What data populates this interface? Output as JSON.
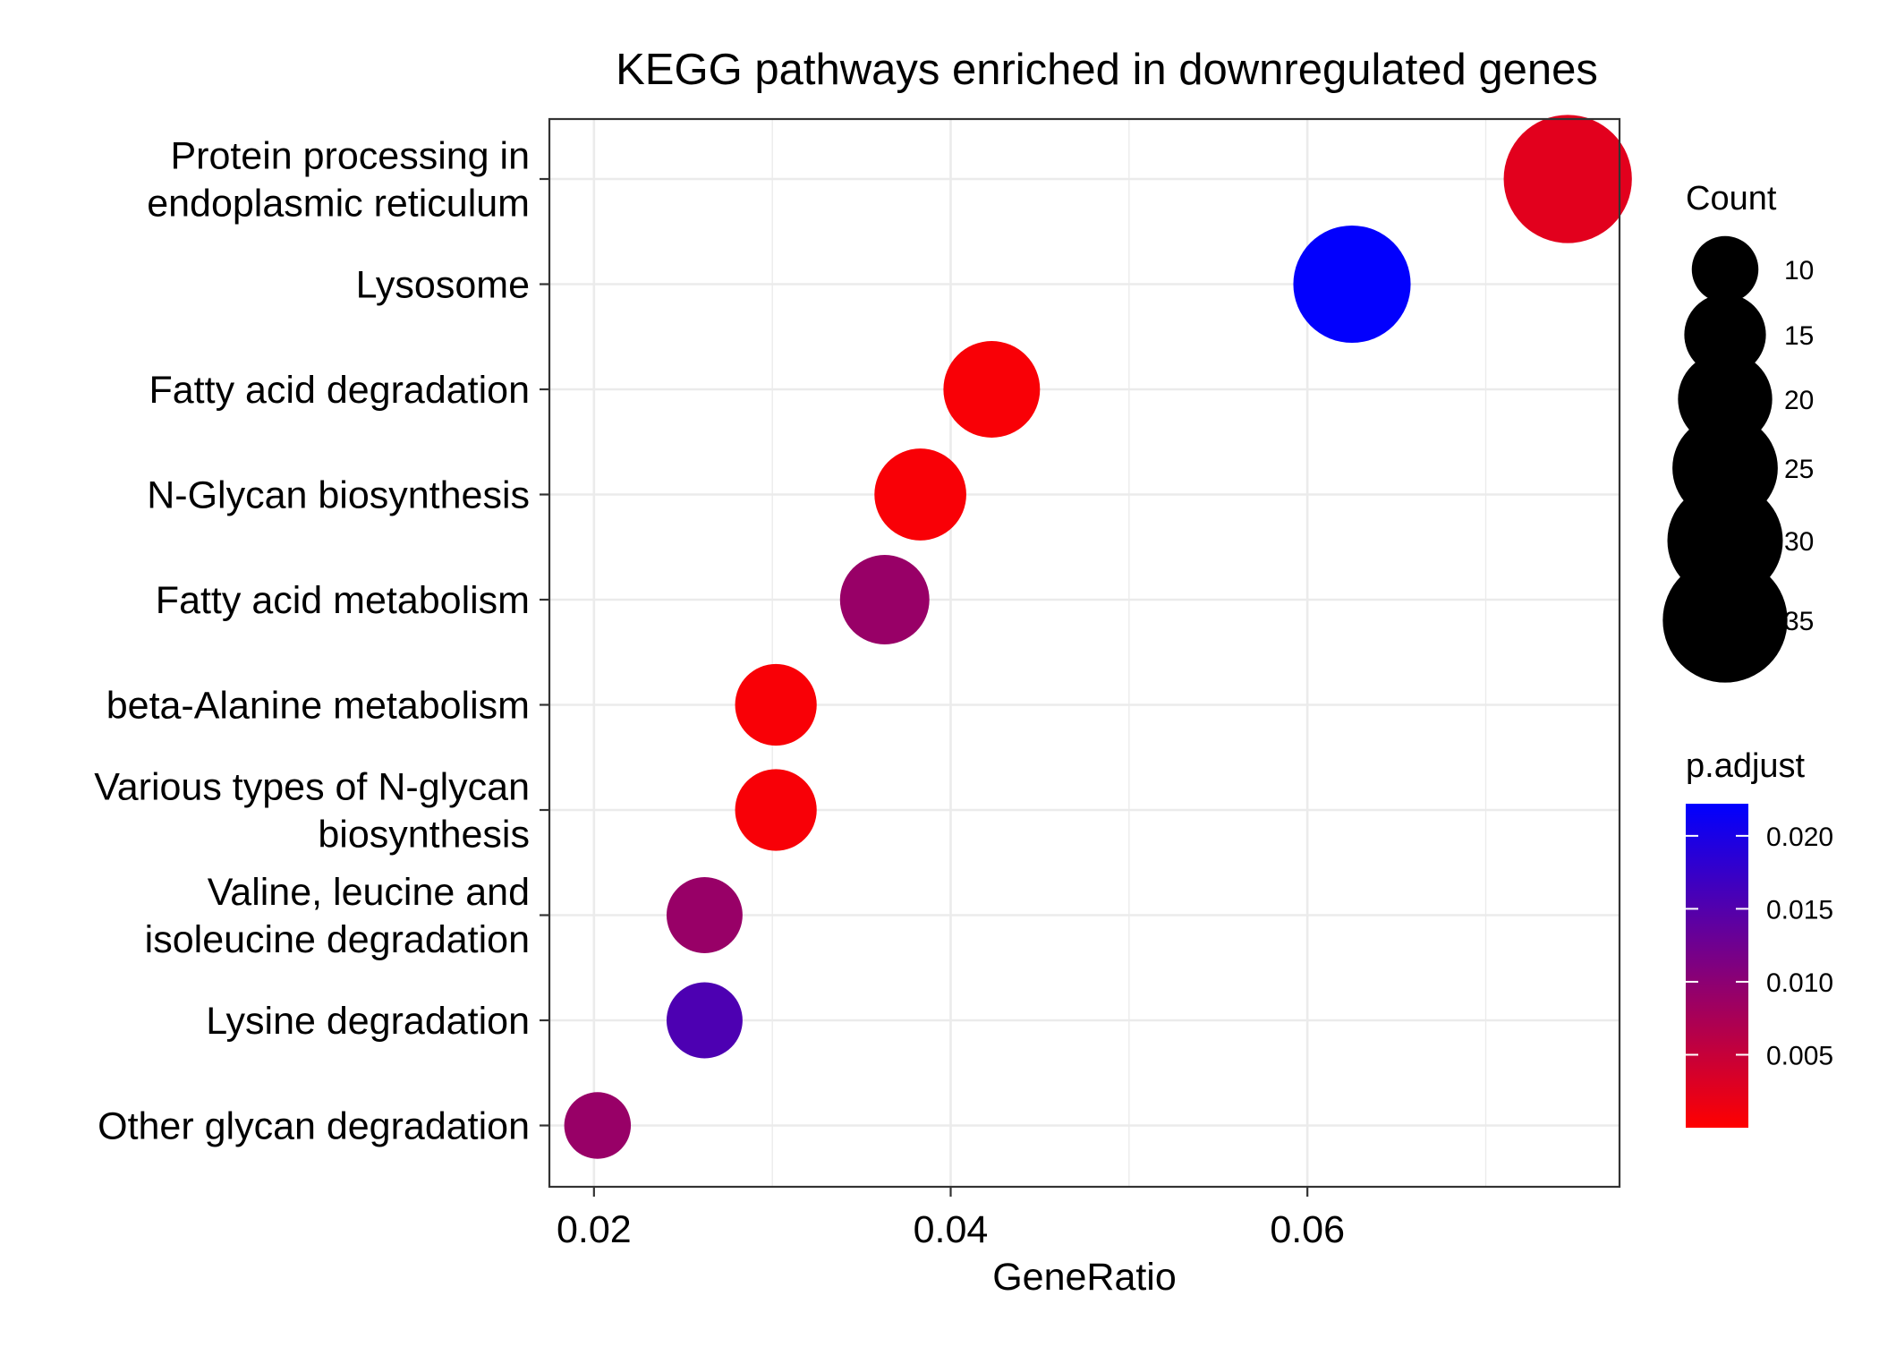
{
  "chart_data": {
    "type": "scatter",
    "title": "KEGG pathways enriched in downregulated genes",
    "xlabel": "GeneRatio",
    "ylabel": "",
    "xlim": [
      0.0175,
      0.0775
    ],
    "x_ticks": [
      "0.02",
      "0.04",
      "0.06"
    ],
    "x_tick_values": [
      0.02,
      0.04,
      0.06
    ],
    "grid": true,
    "categories": [
      "Protein processing in\nendoplasmic reticulum",
      "Lysosome",
      "Fatty acid degradation",
      "N-Glycan biosynthesis",
      "Fatty acid metabolism",
      "beta-Alanine metabolism",
      "Various types of N-glycan\nbiosynthesis",
      "Valine, leucine and\nisoleucine degradation",
      "Lysine degradation",
      "Other glycan degradation"
    ],
    "points": [
      {
        "category": "Protein processing in\nendoplasmic reticulum",
        "gene_ratio": 0.0746,
        "count": 37,
        "p_adjust": 0.0025
      },
      {
        "category": "Lysosome",
        "gene_ratio": 0.0625,
        "count": 31,
        "p_adjust": 0.022
      },
      {
        "category": "Fatty acid degradation",
        "gene_ratio": 0.0423,
        "count": 21,
        "p_adjust": 0.0005
      },
      {
        "category": "N-Glycan biosynthesis",
        "gene_ratio": 0.0383,
        "count": 19,
        "p_adjust": 0.0005
      },
      {
        "category": "Fatty acid metabolism",
        "gene_ratio": 0.0363,
        "count": 18,
        "p_adjust": 0.009
      },
      {
        "category": "beta-Alanine metabolism",
        "gene_ratio": 0.0302,
        "count": 15,
        "p_adjust": 0.0005
      },
      {
        "category": "Various types of N-glycan\nbiosynthesis",
        "gene_ratio": 0.0302,
        "count": 15,
        "p_adjust": 0.0006
      },
      {
        "category": "Valine, leucine and\nisoleucine degradation",
        "gene_ratio": 0.0262,
        "count": 13,
        "p_adjust": 0.009
      },
      {
        "category": "Lysine degradation",
        "gene_ratio": 0.0262,
        "count": 13,
        "p_adjust": 0.0155
      },
      {
        "category": "Other glycan degradation",
        "gene_ratio": 0.0202,
        "count": 10,
        "p_adjust": 0.009
      }
    ],
    "size_legend": {
      "title": "Count",
      "values": [
        10,
        15,
        20,
        25,
        30,
        35
      ],
      "labels": [
        "10",
        "15",
        "20",
        "25",
        "30",
        "35"
      ]
    },
    "color_legend": {
      "title": "p.adjust",
      "range": [
        0.0,
        0.0222
      ],
      "low_color": "#ff0000",
      "high_color": "#0000ff",
      "ticks": [
        0.005,
        0.01,
        0.015,
        0.02
      ],
      "tick_labels": [
        "0.005",
        "0.010",
        "0.015",
        "0.020"
      ]
    }
  }
}
